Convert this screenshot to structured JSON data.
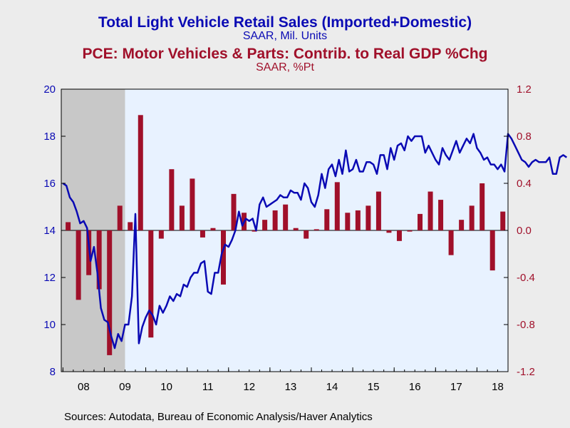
{
  "chart_data": {
    "type": "bar+line",
    "titles": [
      {
        "text": "Total Light Vehicle Retail Sales (Imported+Domestic)",
        "color": "#0a0ab4"
      },
      {
        "text": "SAAR, Mil. Units",
        "color": "#0a0ab4"
      },
      {
        "text": "PCE: Motor Vehicles & Parts: Contrib. to Real GDP %Chg",
        "color": "#a0102a"
      },
      {
        "text": "SAAR, %Pt",
        "color": "#a0102a"
      }
    ],
    "source": "Sources:  Autodata, Bureau of Economic Analysis/Haver Analytics",
    "x_tick_labels": [
      "08",
      "09",
      "10",
      "11",
      "12",
      "13",
      "14",
      "15",
      "16",
      "17",
      "18"
    ],
    "x_range": [
      2007.96,
      2018.75
    ],
    "left_axis": {
      "range": [
        8,
        20
      ],
      "ticks": [
        "8",
        "10",
        "12",
        "14",
        "16",
        "18",
        "20"
      ],
      "color": "#0a0ab4"
    },
    "right_axis": {
      "range": [
        -1.2,
        1.2
      ],
      "ticks": [
        "-1.2",
        "-0.8",
        "-0.4",
        "0.0",
        "0.4",
        "0.8",
        "1.2"
      ],
      "color": "#a0102a"
    },
    "recession_shading": [
      2007.96,
      2009.5
    ],
    "colors": {
      "line": "#0a0ab4",
      "bar": "#a0102a",
      "plot_bg": "#e8f2ff",
      "shade": "#c8c8c8"
    },
    "series": [
      {
        "name": "Total Light Vehicle Retail Sales (Imported+Domestic)",
        "axis": "left",
        "type": "line",
        "x_start": 2008.0,
        "x_step": 0.08333,
        "values": [
          16.0,
          15.9,
          15.4,
          15.2,
          14.8,
          14.3,
          14.4,
          14.1,
          12.7,
          13.3,
          12.2,
          10.7,
          10.2,
          10.1,
          9.5,
          9.0,
          9.6,
          9.3,
          10.0,
          10.0,
          11.2,
          14.7,
          9.2,
          9.9,
          10.3,
          10.6,
          10.4,
          10.0,
          10.8,
          10.5,
          10.8,
          11.2,
          11.0,
          11.3,
          11.2,
          11.7,
          11.6,
          12.0,
          12.2,
          12.2,
          12.6,
          12.7,
          11.4,
          11.3,
          12.2,
          12.2,
          13.0,
          13.4,
          13.3,
          13.6,
          14.0,
          14.8,
          14.2,
          14.5,
          14.4,
          14.5,
          14.0,
          15.1,
          15.4,
          15.0,
          15.1,
          15.2,
          15.3,
          15.5,
          15.4,
          15.4,
          15.7,
          15.6,
          15.6,
          15.3,
          16.0,
          15.8,
          15.2,
          15.0,
          15.5,
          16.4,
          15.8,
          16.6,
          16.8,
          16.3,
          17.0,
          16.4,
          17.4,
          16.5,
          16.6,
          17.0,
          16.5,
          16.5,
          16.9,
          16.9,
          16.8,
          16.4,
          17.2,
          17.2,
          16.6,
          17.5,
          17.0,
          17.6,
          17.7,
          17.4,
          18.0,
          17.8,
          18.0,
          18.0,
          18.0,
          17.3,
          17.6,
          17.3,
          17.0,
          16.8,
          17.5,
          17.2,
          17.0,
          17.4,
          17.8,
          17.3,
          17.6,
          17.9,
          17.7,
          18.1,
          17.5,
          17.3,
          17.0,
          17.1,
          16.8,
          16.8,
          16.6,
          16.8,
          16.5,
          18.1,
          17.9,
          17.6,
          17.3,
          17.0,
          16.9,
          16.7,
          16.9,
          17.0,
          16.9,
          16.9,
          16.9,
          17.1,
          16.4,
          16.4,
          17.1,
          17.2,
          17.1
        ]
      },
      {
        "name": "PCE: Motor Vehicles & Parts: Contrib. to Real GDP %Chg",
        "axis": "right",
        "type": "bar",
        "x": [
          2008.0,
          2008.25,
          2008.5,
          2008.75,
          2009.0,
          2009.25,
          2009.5,
          2009.75,
          2010.0,
          2010.25,
          2010.5,
          2010.75,
          2011.0,
          2011.25,
          2011.5,
          2011.75,
          2012.0,
          2012.25,
          2012.5,
          2012.75,
          2013.0,
          2013.25,
          2013.5,
          2013.75,
          2014.0,
          2014.25,
          2014.5,
          2014.75,
          2015.0,
          2015.25,
          2015.5,
          2015.75,
          2016.0,
          2016.25,
          2016.5,
          2016.75,
          2017.0,
          2017.25,
          2017.5,
          2017.75,
          2018.0,
          2018.25,
          2018.5
        ],
        "values": [
          0.07,
          -0.59,
          -0.38,
          -0.5,
          -1.06,
          0.21,
          0.07,
          0.98,
          -0.91,
          -0.07,
          0.52,
          0.21,
          0.44,
          -0.06,
          0.02,
          -0.46,
          0.31,
          0.15,
          -0.01,
          0.09,
          0.17,
          0.22,
          0.02,
          -0.07,
          0.01,
          0.18,
          0.41,
          0.15,
          0.17,
          0.21,
          0.33,
          -0.02,
          -0.09,
          -0.01,
          0.14,
          0.33,
          0.26,
          -0.21,
          0.09,
          0.21,
          0.4,
          -0.34,
          0.16
        ]
      }
    ]
  }
}
